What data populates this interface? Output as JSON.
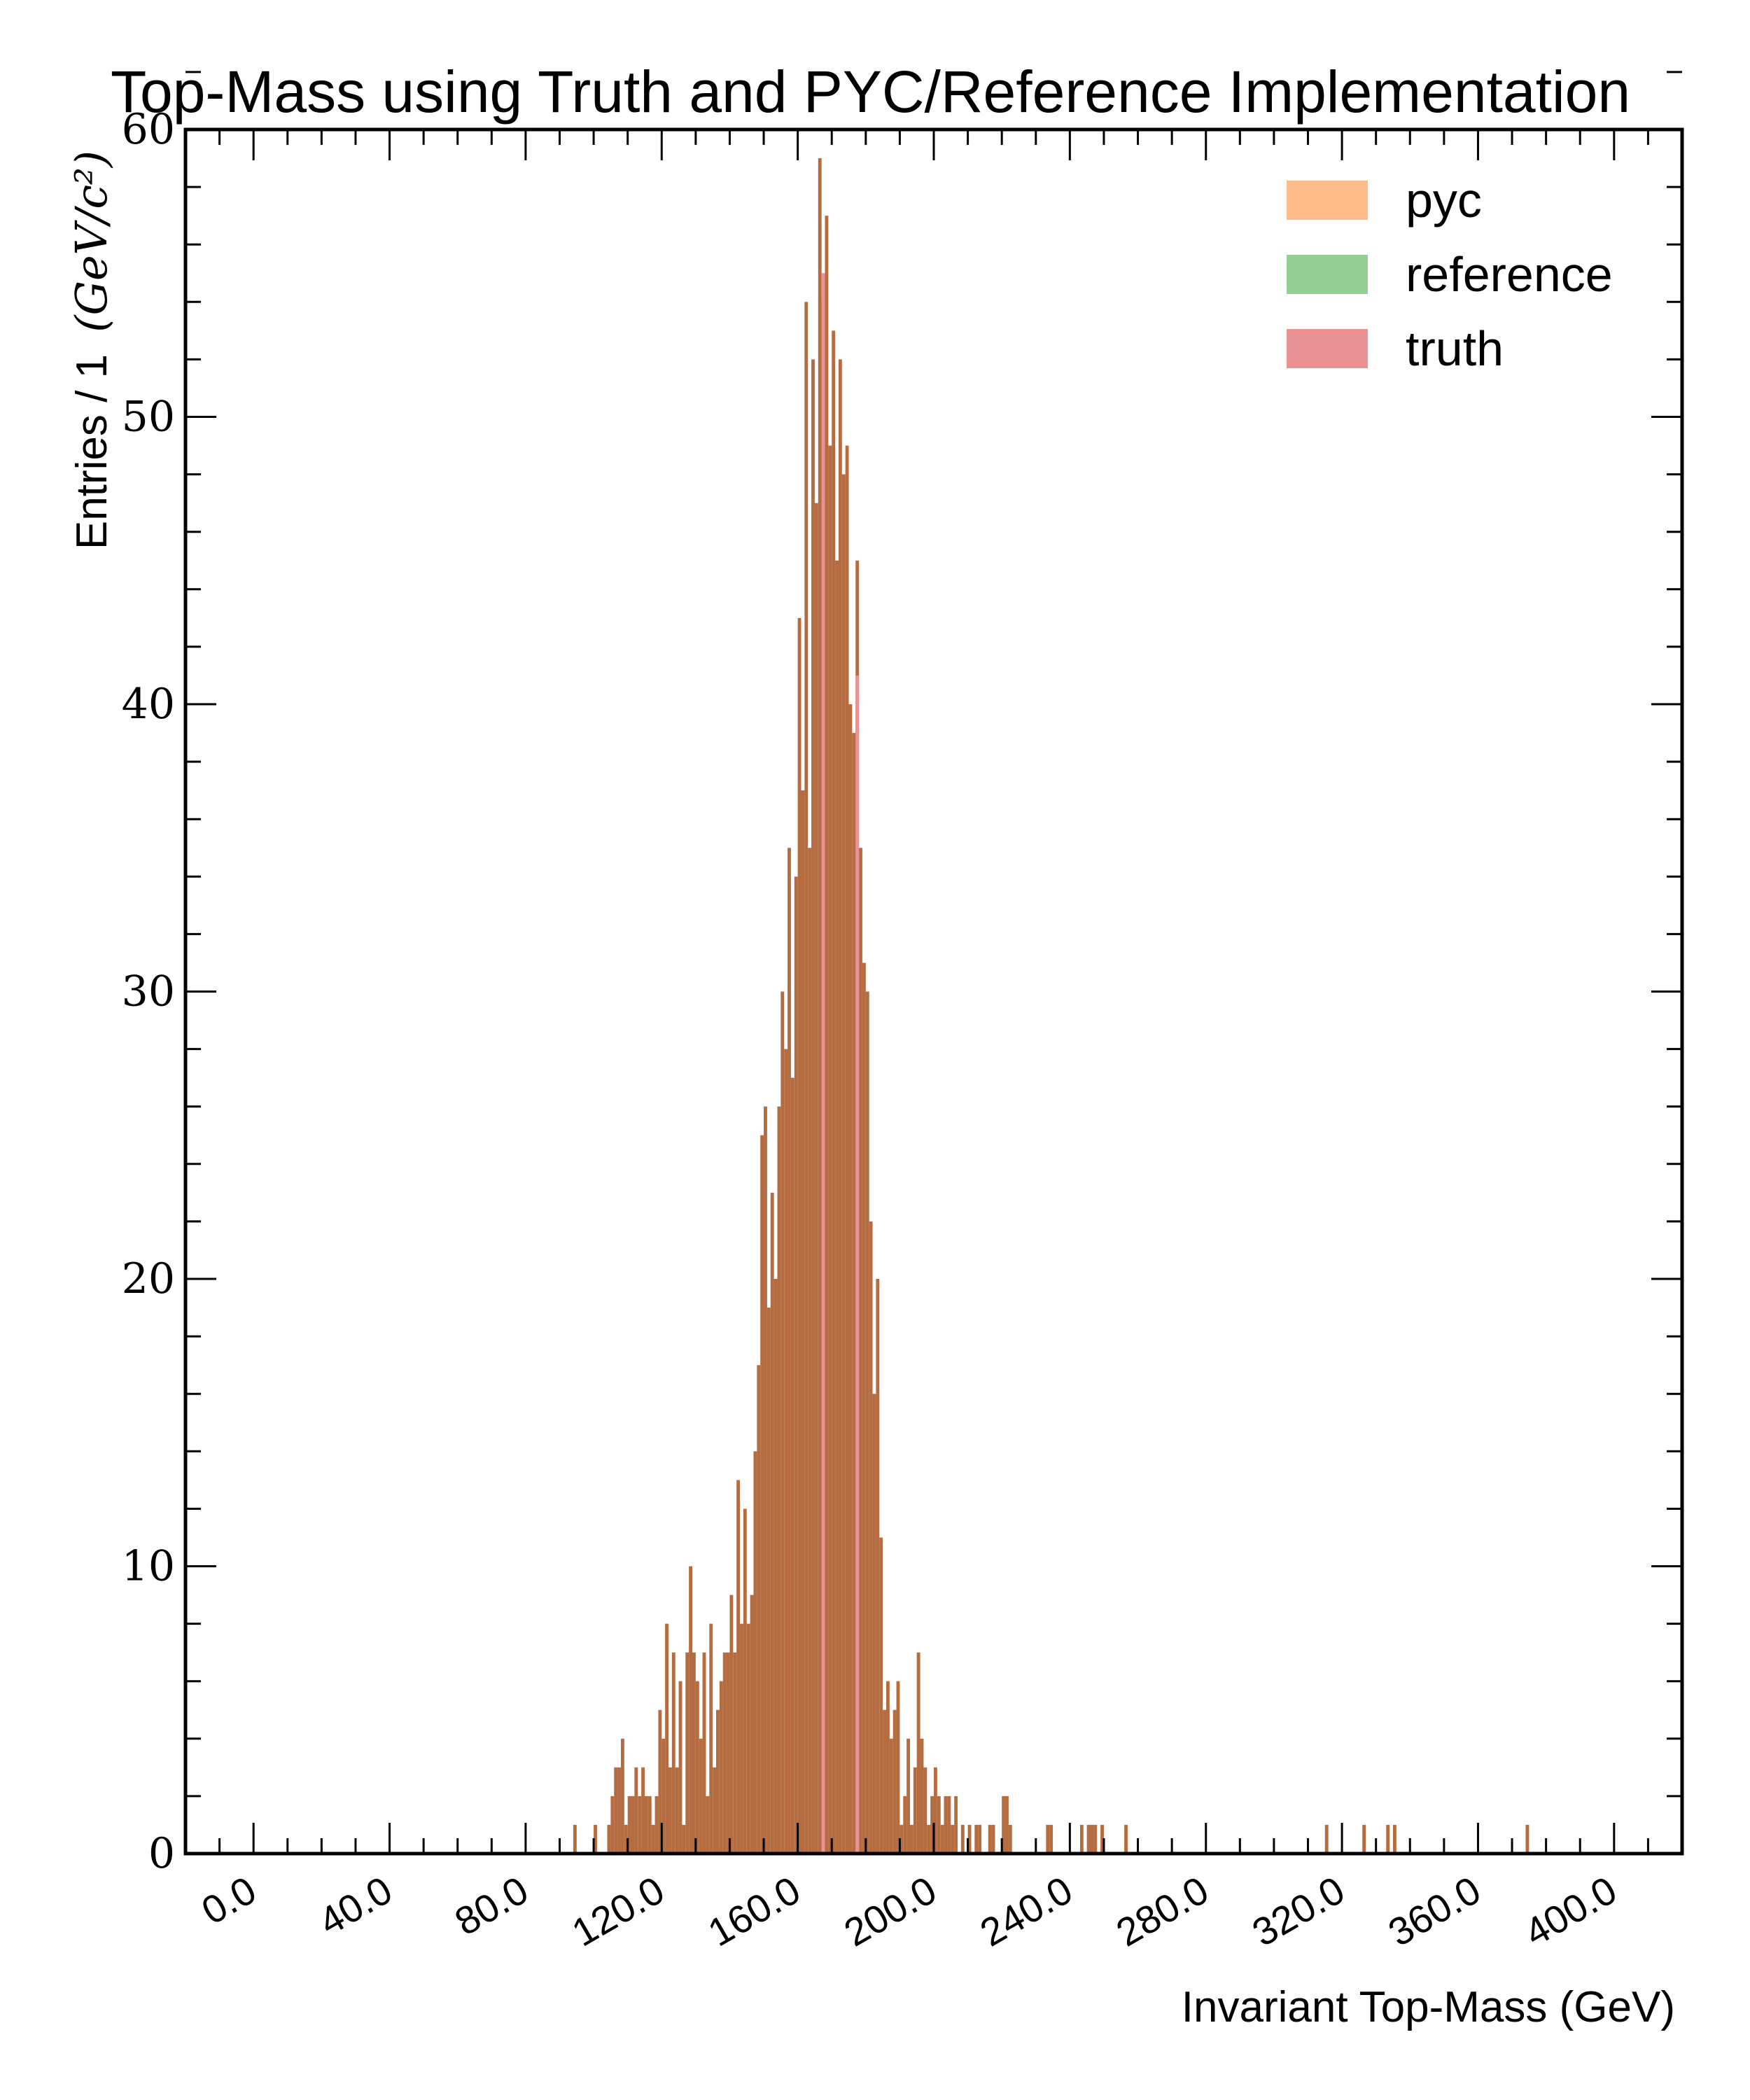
{
  "chart_data": {
    "type": "bar",
    "title": "Top-Mass using Truth and PYC/Reference Implementation",
    "xlabel": "Invariant Top-Mass (GeV)",
    "ylabel_text": "Entries / 1",
    "ylabel_unit": "(GeV/c²)",
    "xlim": [
      -20,
      420
    ],
    "ylim": [
      0,
      60
    ],
    "x_ticks": [
      0,
      40,
      80,
      120,
      160,
      200,
      240,
      280,
      320,
      360,
      400
    ],
    "x_tick_labels": [
      "0.0",
      "40.0",
      "80.0",
      "120.0",
      "160.0",
      "200.0",
      "240.0",
      "280.0",
      "320.0",
      "360.0",
      "400.0"
    ],
    "y_ticks": [
      0,
      10,
      20,
      30,
      40,
      50,
      60
    ],
    "y_tick_labels": [
      "0",
      "10",
      "20",
      "30",
      "40",
      "50",
      "60"
    ],
    "bin_width": 1,
    "legend_position": "top-right",
    "legend": [
      {
        "label": "pyc",
        "color": "#ffbb88"
      },
      {
        "label": "reference",
        "color": "#95cf95"
      },
      {
        "label": "truth",
        "color": "#ea9293"
      }
    ],
    "series": [
      {
        "name": "pyc",
        "color": "#b56c40",
        "bins": [
          [
            94,
            1
          ],
          [
            100,
            1
          ],
          [
            104,
            1
          ],
          [
            105,
            2
          ],
          [
            106,
            3
          ],
          [
            107,
            3
          ],
          [
            108,
            4
          ],
          [
            109,
            1
          ],
          [
            110,
            2
          ],
          [
            111,
            2
          ],
          [
            112,
            3
          ],
          [
            113,
            2
          ],
          [
            114,
            3
          ],
          [
            115,
            2
          ],
          [
            116,
            2
          ],
          [
            117,
            1
          ],
          [
            118,
            2
          ],
          [
            119,
            5
          ],
          [
            120,
            4
          ],
          [
            121,
            8
          ],
          [
            122,
            3
          ],
          [
            123,
            7
          ],
          [
            124,
            3
          ],
          [
            125,
            6
          ],
          [
            126,
            1
          ],
          [
            127,
            7
          ],
          [
            128,
            10
          ],
          [
            129,
            7
          ],
          [
            130,
            6
          ],
          [
            131,
            4
          ],
          [
            132,
            7
          ],
          [
            133,
            2
          ],
          [
            134,
            8
          ],
          [
            135,
            3
          ],
          [
            136,
            5
          ],
          [
            137,
            6
          ],
          [
            138,
            7
          ],
          [
            139,
            7
          ],
          [
            140,
            9
          ],
          [
            141,
            7
          ],
          [
            142,
            13
          ],
          [
            143,
            8
          ],
          [
            144,
            12
          ],
          [
            145,
            8
          ],
          [
            146,
            9
          ],
          [
            147,
            14
          ],
          [
            148,
            17
          ],
          [
            149,
            25
          ],
          [
            150,
            26
          ],
          [
            151,
            19
          ],
          [
            152,
            23
          ],
          [
            153,
            20
          ],
          [
            154,
            26
          ],
          [
            155,
            30
          ],
          [
            156,
            28
          ],
          [
            157,
            35
          ],
          [
            158,
            27
          ],
          [
            159,
            34
          ],
          [
            160,
            43
          ],
          [
            161,
            37
          ],
          [
            162,
            54
          ],
          [
            163,
            35
          ],
          [
            164,
            52
          ],
          [
            165,
            47
          ],
          [
            166,
            59
          ],
          [
            167,
            54
          ],
          [
            168,
            57
          ],
          [
            169,
            49
          ],
          [
            170,
            53
          ],
          [
            171,
            45
          ],
          [
            172,
            52
          ],
          [
            173,
            48
          ],
          [
            174,
            49
          ],
          [
            175,
            40
          ],
          [
            176,
            39
          ],
          [
            177,
            45
          ],
          [
            178,
            35
          ],
          [
            179,
            31
          ],
          [
            180,
            30
          ],
          [
            181,
            22
          ],
          [
            182,
            16
          ],
          [
            183,
            20
          ],
          [
            184,
            11
          ],
          [
            185,
            5
          ],
          [
            186,
            6
          ],
          [
            187,
            4
          ],
          [
            188,
            5
          ],
          [
            189,
            6
          ],
          [
            190,
            1
          ],
          [
            191,
            2
          ],
          [
            192,
            4
          ],
          [
            193,
            1
          ],
          [
            194,
            3
          ],
          [
            195,
            7
          ],
          [
            196,
            4
          ],
          [
            197,
            3
          ],
          [
            198,
            1
          ],
          [
            199,
            2
          ],
          [
            200,
            3
          ],
          [
            201,
            2
          ],
          [
            202,
            1
          ],
          [
            203,
            2
          ],
          [
            204,
            2
          ],
          [
            205,
            1
          ],
          [
            206,
            2
          ],
          [
            208,
            1
          ],
          [
            210,
            1
          ],
          [
            212,
            1
          ],
          [
            213,
            1
          ],
          [
            216,
            1
          ],
          [
            217,
            1
          ],
          [
            220,
            2
          ],
          [
            221,
            2
          ],
          [
            222,
            1
          ],
          [
            233,
            1
          ],
          [
            234,
            1
          ],
          [
            243,
            1
          ],
          [
            245,
            1
          ],
          [
            246,
            1
          ],
          [
            247,
            1
          ],
          [
            249,
            1
          ],
          [
            256,
            1
          ],
          [
            315,
            1
          ],
          [
            326,
            1
          ],
          [
            333,
            1
          ],
          [
            335,
            1
          ],
          [
            374,
            1
          ]
        ]
      },
      {
        "name": "truth",
        "color": "#ea9293",
        "bins": [
          [
            167,
            55
          ],
          [
            177,
            41
          ]
        ]
      }
    ]
  }
}
